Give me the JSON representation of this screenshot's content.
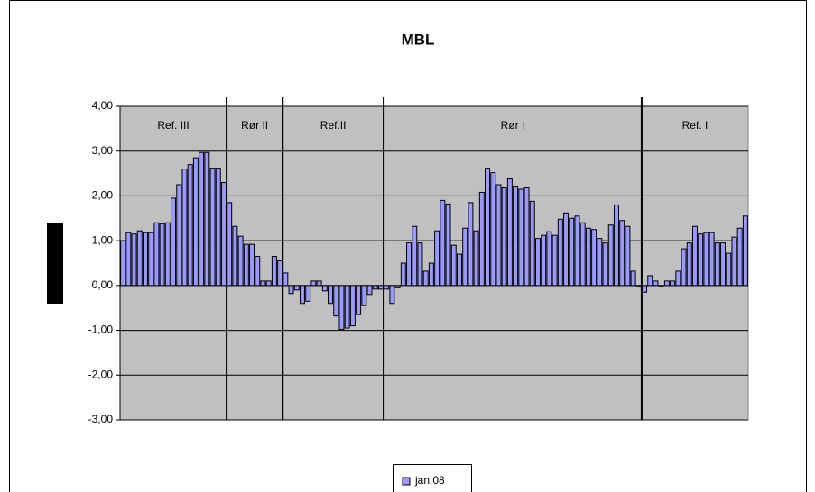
{
  "chart_data": {
    "type": "bar",
    "title": "MBL",
    "series": [
      {
        "name": "jan.08",
        "color": "#9999ff",
        "values": [
          1.0,
          1.18,
          1.15,
          1.22,
          1.18,
          1.18,
          1.4,
          1.38,
          1.4,
          1.95,
          2.25,
          2.6,
          2.7,
          2.85,
          2.97,
          2.97,
          2.62,
          2.62,
          2.3,
          1.85,
          1.32,
          1.1,
          0.92,
          0.92,
          0.65,
          0.1,
          0.1,
          0.65,
          0.55,
          0.28,
          -0.18,
          -0.1,
          -0.4,
          -0.35,
          0.1,
          0.1,
          -0.12,
          -0.4,
          -0.68,
          -0.98,
          -0.95,
          -0.9,
          -0.65,
          -0.45,
          -0.2,
          -0.08,
          -0.08,
          -0.08,
          -0.4,
          -0.05,
          0.5,
          0.95,
          1.32,
          0.95,
          0.32,
          0.5,
          1.22,
          1.9,
          1.82,
          0.9,
          0.7,
          1.28,
          1.85,
          1.22,
          2.08,
          2.62,
          2.52,
          2.25,
          2.18,
          2.38,
          2.22,
          2.15,
          2.18,
          1.88,
          1.05,
          1.12,
          1.2,
          1.12,
          1.48,
          1.62,
          1.5,
          1.55,
          1.4,
          1.28,
          1.25,
          1.05,
          0.95,
          1.35,
          1.8,
          1.45,
          1.32,
          0.32,
          0,
          -0.15,
          0.22,
          0.1,
          0,
          0.1,
          0.1,
          0.32,
          0.82,
          0.95,
          1.32,
          1.15,
          1.18,
          1.18,
          0.95,
          0.95,
          0.72,
          1.08,
          1.28,
          1.55
        ]
      }
    ],
    "regions": [
      {
        "label": "Ref. III",
        "count": 19
      },
      {
        "label": "Rør II",
        "count": 10
      },
      {
        "label": "Ref.II",
        "count": 18
      },
      {
        "label": "Rør I",
        "count": 46
      },
      {
        "label": "Ref. I",
        "count": 19
      }
    ],
    "ylim": [
      -3,
      4
    ],
    "yticks": [
      {
        "value": -3,
        "label": "-3,00"
      },
      {
        "value": -2,
        "label": "-2,00"
      },
      {
        "value": -1,
        "label": "-1,00"
      },
      {
        "value": 0,
        "label": "0,00"
      },
      {
        "value": 1,
        "label": "1,00"
      },
      {
        "value": 2,
        "label": "2,00"
      },
      {
        "value": 3,
        "label": "3,00"
      },
      {
        "value": 4,
        "label": "4,00"
      }
    ],
    "grid": true
  }
}
